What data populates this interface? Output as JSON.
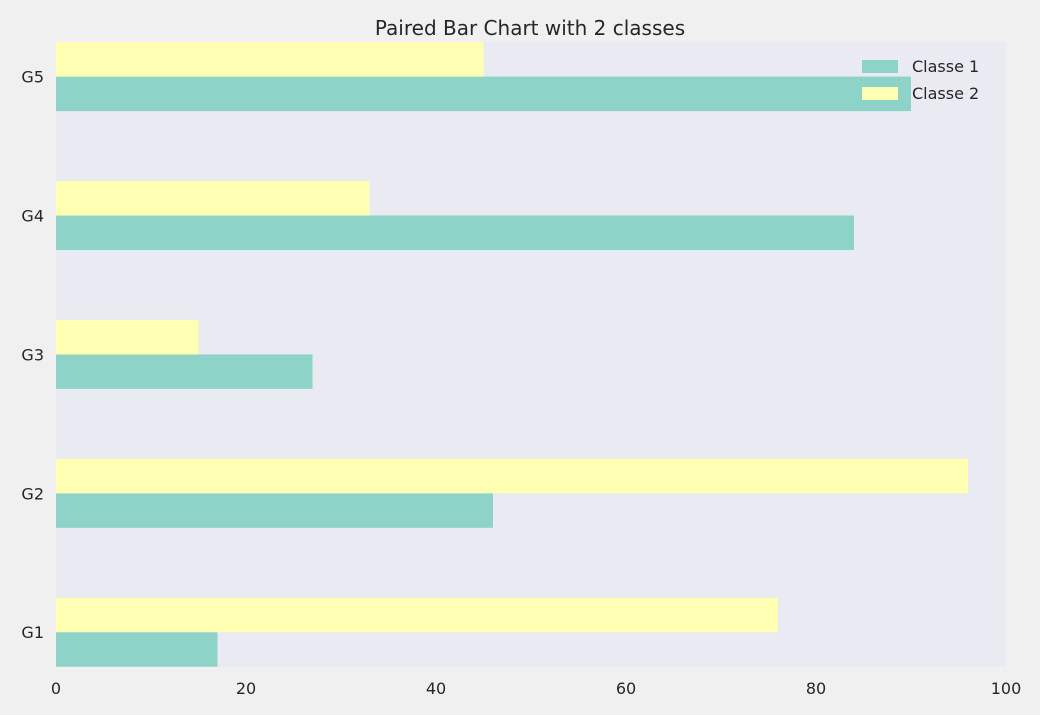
{
  "chart_data": {
    "type": "bar",
    "orientation": "horizontal",
    "title": "Paired Bar Chart with 2 classes",
    "xlabel": "",
    "ylabel": "",
    "categories": [
      "G1",
      "G2",
      "G3",
      "G4",
      "G5"
    ],
    "series": [
      {
        "name": "Classe 1",
        "color": "#8dd3c7",
        "values": [
          17,
          46,
          27,
          84,
          90
        ]
      },
      {
        "name": "Classe 2",
        "color": "#ffffb3",
        "values": [
          76,
          96,
          15,
          33,
          45
        ]
      }
    ],
    "xlim": [
      0,
      100
    ],
    "xticks": [
      "0",
      "20",
      "40",
      "60",
      "80",
      "100"
    ],
    "grid": false,
    "legend_position": "top-right",
    "plot_background": "#eaeaf2",
    "figure_background": "#f0f0f0"
  }
}
